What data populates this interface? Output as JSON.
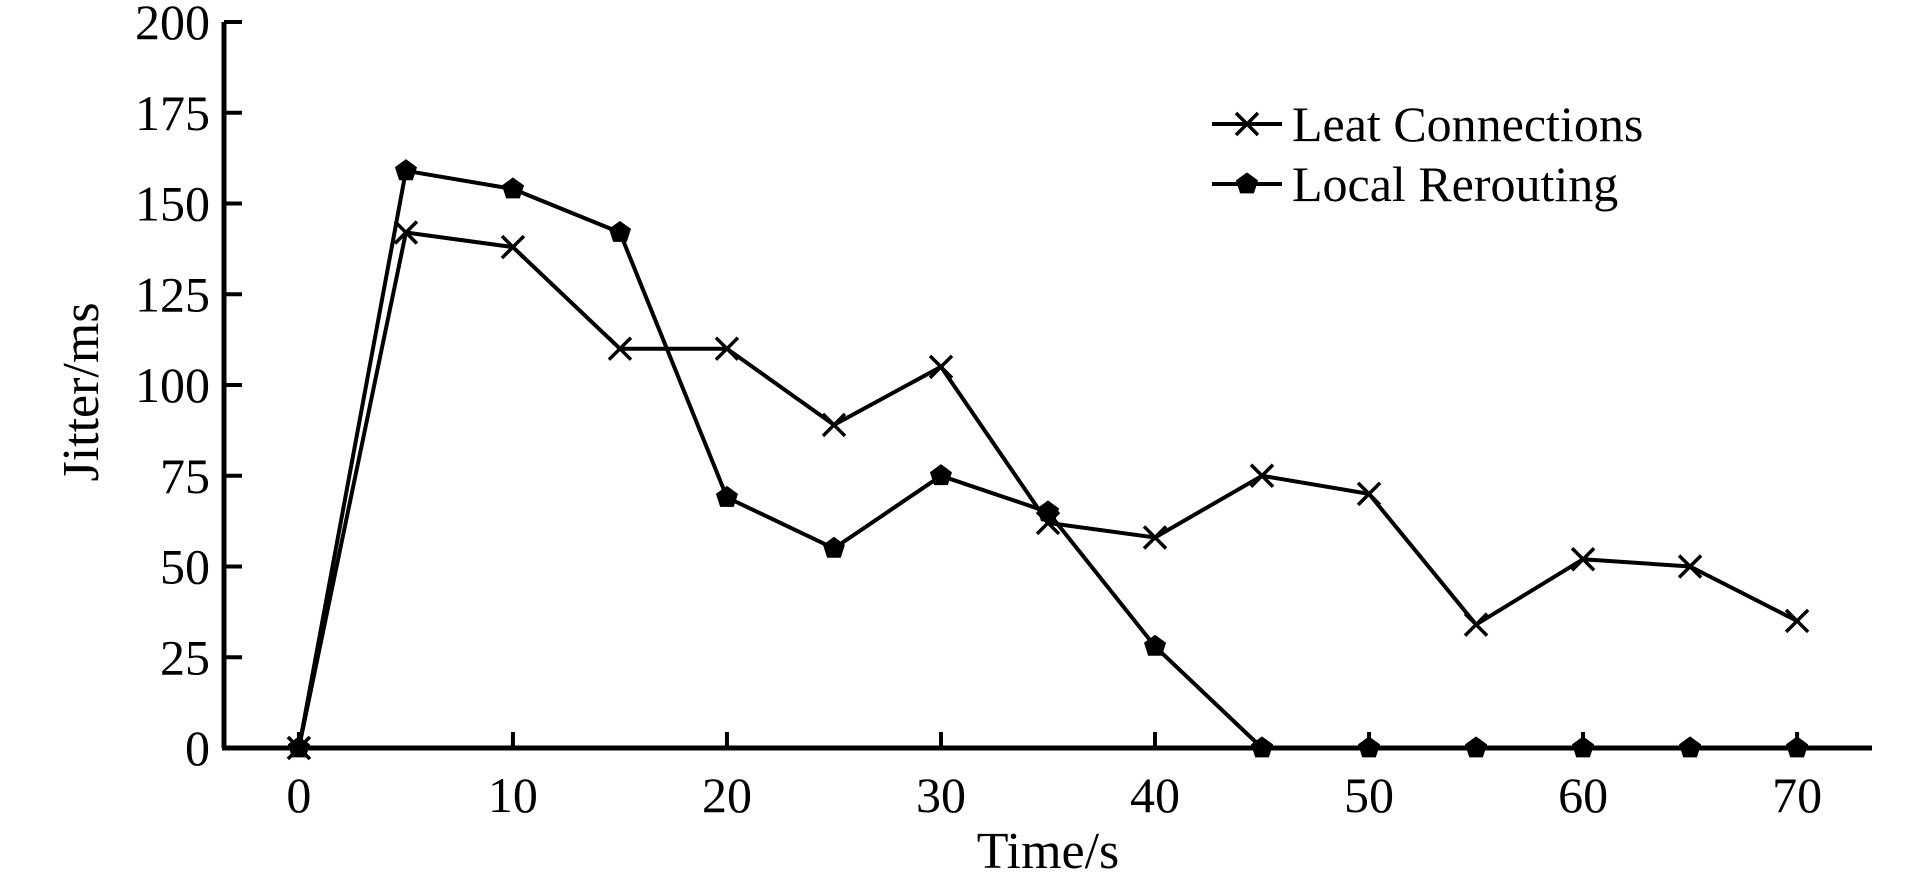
{
  "chart_data": {
    "type": "line",
    "title": "",
    "xlabel": "Time/s",
    "ylabel": "Jitter/ms",
    "xlim": [
      -3.5,
      73.5
    ],
    "ylim": [
      0,
      200
    ],
    "xticks": [
      0,
      10,
      20,
      30,
      40,
      50,
      60,
      70
    ],
    "yticks": [
      0,
      25,
      50,
      75,
      100,
      125,
      150,
      175,
      200
    ],
    "grid": false,
    "legend_position": "top-right",
    "series_color": "#000000",
    "series": [
      {
        "name": "Leat Connections",
        "marker": "x",
        "x": [
          0,
          5,
          10,
          15,
          20,
          25,
          30,
          35,
          40,
          45,
          50,
          55,
          60,
          65,
          70
        ],
        "values": [
          0,
          142,
          138,
          110,
          110,
          89,
          105,
          62,
          58,
          75,
          70,
          34,
          52,
          50,
          35
        ]
      },
      {
        "name": "Local Rerouting",
        "marker": "pentagon",
        "x": [
          0,
          5,
          10,
          15,
          20,
          25,
          30,
          35,
          40,
          45,
          50,
          55,
          60,
          65,
          70
        ],
        "values": [
          0,
          159,
          154,
          142,
          69,
          55,
          75,
          65,
          28,
          0,
          0,
          0,
          0,
          0,
          0
        ]
      }
    ]
  }
}
